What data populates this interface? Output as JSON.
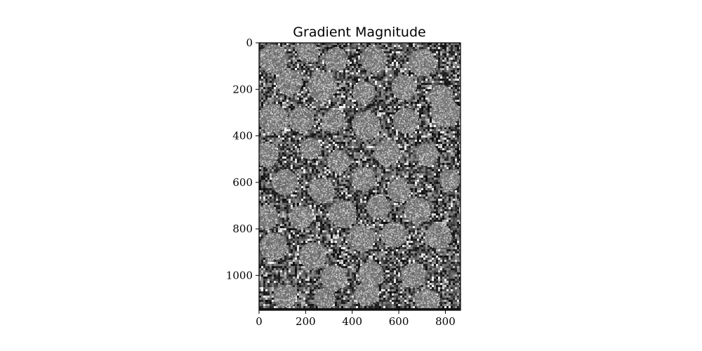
{
  "chart_data": {
    "type": "heatmap",
    "title": "Gradient Magnitude",
    "xlabel": "",
    "ylabel": "",
    "colormap": "gray",
    "xlim": [
      0,
      865
    ],
    "ylim": [
      1150,
      0
    ],
    "x_ticks": [
      0,
      200,
      400,
      600,
      800
    ],
    "y_ticks": [
      0,
      200,
      400,
      600,
      800,
      1000
    ],
    "grid": false,
    "blobs": [
      [
        60,
        70,
        62
      ],
      [
        210,
        40,
        45
      ],
      [
        330,
        70,
        50
      ],
      [
        490,
        70,
        55
      ],
      [
        700,
        85,
        58
      ],
      [
        130,
        170,
        55
      ],
      [
        270,
        185,
        62
      ],
      [
        450,
        215,
        48
      ],
      [
        620,
        190,
        52
      ],
      [
        780,
        230,
        50
      ],
      [
        60,
        325,
        62
      ],
      [
        180,
        330,
        55
      ],
      [
        320,
        335,
        48
      ],
      [
        460,
        355,
        60
      ],
      [
        630,
        335,
        55
      ],
      [
        800,
        300,
        60
      ],
      [
        30,
        480,
        52
      ],
      [
        220,
        455,
        45
      ],
      [
        340,
        510,
        48
      ],
      [
        550,
        470,
        55
      ],
      [
        720,
        480,
        48
      ],
      [
        110,
        600,
        55
      ],
      [
        270,
        635,
        52
      ],
      [
        450,
        585,
        50
      ],
      [
        600,
        635,
        48
      ],
      [
        820,
        590,
        45
      ],
      [
        30,
        750,
        52
      ],
      [
        180,
        750,
        50
      ],
      [
        360,
        735,
        58
      ],
      [
        510,
        705,
        50
      ],
      [
        680,
        720,
        55
      ],
      [
        60,
        875,
        58
      ],
      [
        230,
        915,
        58
      ],
      [
        440,
        840,
        55
      ],
      [
        580,
        825,
        55
      ],
      [
        770,
        830,
        55
      ],
      [
        320,
        1010,
        55
      ],
      [
        480,
        995,
        55
      ],
      [
        660,
        1000,
        52
      ],
      [
        110,
        1090,
        48
      ],
      [
        280,
        1100,
        45
      ],
      [
        460,
        1080,
        50
      ],
      [
        720,
        1110,
        50
      ]
    ]
  }
}
